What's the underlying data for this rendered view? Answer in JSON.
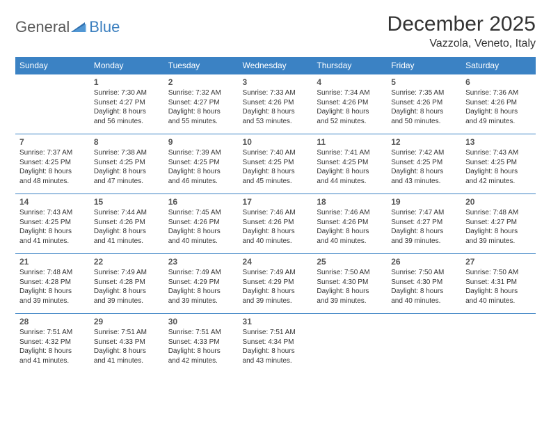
{
  "brand": {
    "part1": "General",
    "part2": "Blue"
  },
  "title": "December 2025",
  "location": "Vazzola, Veneto, Italy",
  "colors": {
    "header_bg": "#3b82c4",
    "header_text": "#ffffff",
    "border": "#3b82c4",
    "page_bg": "#ffffff",
    "text": "#333333",
    "brand_gray": "#5a5a5a",
    "brand_blue": "#3b7fbf"
  },
  "day_headers": [
    "Sunday",
    "Monday",
    "Tuesday",
    "Wednesday",
    "Thursday",
    "Friday",
    "Saturday"
  ],
  "weeks": [
    [
      null,
      {
        "d": "1",
        "sr": "Sunrise: 7:30 AM",
        "ss": "Sunset: 4:27 PM",
        "dl1": "Daylight: 8 hours",
        "dl2": "and 56 minutes."
      },
      {
        "d": "2",
        "sr": "Sunrise: 7:32 AM",
        "ss": "Sunset: 4:27 PM",
        "dl1": "Daylight: 8 hours",
        "dl2": "and 55 minutes."
      },
      {
        "d": "3",
        "sr": "Sunrise: 7:33 AM",
        "ss": "Sunset: 4:26 PM",
        "dl1": "Daylight: 8 hours",
        "dl2": "and 53 minutes."
      },
      {
        "d": "4",
        "sr": "Sunrise: 7:34 AM",
        "ss": "Sunset: 4:26 PM",
        "dl1": "Daylight: 8 hours",
        "dl2": "and 52 minutes."
      },
      {
        "d": "5",
        "sr": "Sunrise: 7:35 AM",
        "ss": "Sunset: 4:26 PM",
        "dl1": "Daylight: 8 hours",
        "dl2": "and 50 minutes."
      },
      {
        "d": "6",
        "sr": "Sunrise: 7:36 AM",
        "ss": "Sunset: 4:26 PM",
        "dl1": "Daylight: 8 hours",
        "dl2": "and 49 minutes."
      }
    ],
    [
      {
        "d": "7",
        "sr": "Sunrise: 7:37 AM",
        "ss": "Sunset: 4:25 PM",
        "dl1": "Daylight: 8 hours",
        "dl2": "and 48 minutes."
      },
      {
        "d": "8",
        "sr": "Sunrise: 7:38 AM",
        "ss": "Sunset: 4:25 PM",
        "dl1": "Daylight: 8 hours",
        "dl2": "and 47 minutes."
      },
      {
        "d": "9",
        "sr": "Sunrise: 7:39 AM",
        "ss": "Sunset: 4:25 PM",
        "dl1": "Daylight: 8 hours",
        "dl2": "and 46 minutes."
      },
      {
        "d": "10",
        "sr": "Sunrise: 7:40 AM",
        "ss": "Sunset: 4:25 PM",
        "dl1": "Daylight: 8 hours",
        "dl2": "and 45 minutes."
      },
      {
        "d": "11",
        "sr": "Sunrise: 7:41 AM",
        "ss": "Sunset: 4:25 PM",
        "dl1": "Daylight: 8 hours",
        "dl2": "and 44 minutes."
      },
      {
        "d": "12",
        "sr": "Sunrise: 7:42 AM",
        "ss": "Sunset: 4:25 PM",
        "dl1": "Daylight: 8 hours",
        "dl2": "and 43 minutes."
      },
      {
        "d": "13",
        "sr": "Sunrise: 7:43 AM",
        "ss": "Sunset: 4:25 PM",
        "dl1": "Daylight: 8 hours",
        "dl2": "and 42 minutes."
      }
    ],
    [
      {
        "d": "14",
        "sr": "Sunrise: 7:43 AM",
        "ss": "Sunset: 4:25 PM",
        "dl1": "Daylight: 8 hours",
        "dl2": "and 41 minutes."
      },
      {
        "d": "15",
        "sr": "Sunrise: 7:44 AM",
        "ss": "Sunset: 4:26 PM",
        "dl1": "Daylight: 8 hours",
        "dl2": "and 41 minutes."
      },
      {
        "d": "16",
        "sr": "Sunrise: 7:45 AM",
        "ss": "Sunset: 4:26 PM",
        "dl1": "Daylight: 8 hours",
        "dl2": "and 40 minutes."
      },
      {
        "d": "17",
        "sr": "Sunrise: 7:46 AM",
        "ss": "Sunset: 4:26 PM",
        "dl1": "Daylight: 8 hours",
        "dl2": "and 40 minutes."
      },
      {
        "d": "18",
        "sr": "Sunrise: 7:46 AM",
        "ss": "Sunset: 4:26 PM",
        "dl1": "Daylight: 8 hours",
        "dl2": "and 40 minutes."
      },
      {
        "d": "19",
        "sr": "Sunrise: 7:47 AM",
        "ss": "Sunset: 4:27 PM",
        "dl1": "Daylight: 8 hours",
        "dl2": "and 39 minutes."
      },
      {
        "d": "20",
        "sr": "Sunrise: 7:48 AM",
        "ss": "Sunset: 4:27 PM",
        "dl1": "Daylight: 8 hours",
        "dl2": "and 39 minutes."
      }
    ],
    [
      {
        "d": "21",
        "sr": "Sunrise: 7:48 AM",
        "ss": "Sunset: 4:28 PM",
        "dl1": "Daylight: 8 hours",
        "dl2": "and 39 minutes."
      },
      {
        "d": "22",
        "sr": "Sunrise: 7:49 AM",
        "ss": "Sunset: 4:28 PM",
        "dl1": "Daylight: 8 hours",
        "dl2": "and 39 minutes."
      },
      {
        "d": "23",
        "sr": "Sunrise: 7:49 AM",
        "ss": "Sunset: 4:29 PM",
        "dl1": "Daylight: 8 hours",
        "dl2": "and 39 minutes."
      },
      {
        "d": "24",
        "sr": "Sunrise: 7:49 AM",
        "ss": "Sunset: 4:29 PM",
        "dl1": "Daylight: 8 hours",
        "dl2": "and 39 minutes."
      },
      {
        "d": "25",
        "sr": "Sunrise: 7:50 AM",
        "ss": "Sunset: 4:30 PM",
        "dl1": "Daylight: 8 hours",
        "dl2": "and 39 minutes."
      },
      {
        "d": "26",
        "sr": "Sunrise: 7:50 AM",
        "ss": "Sunset: 4:30 PM",
        "dl1": "Daylight: 8 hours",
        "dl2": "and 40 minutes."
      },
      {
        "d": "27",
        "sr": "Sunrise: 7:50 AM",
        "ss": "Sunset: 4:31 PM",
        "dl1": "Daylight: 8 hours",
        "dl2": "and 40 minutes."
      }
    ],
    [
      {
        "d": "28",
        "sr": "Sunrise: 7:51 AM",
        "ss": "Sunset: 4:32 PM",
        "dl1": "Daylight: 8 hours",
        "dl2": "and 41 minutes."
      },
      {
        "d": "29",
        "sr": "Sunrise: 7:51 AM",
        "ss": "Sunset: 4:33 PM",
        "dl1": "Daylight: 8 hours",
        "dl2": "and 41 minutes."
      },
      {
        "d": "30",
        "sr": "Sunrise: 7:51 AM",
        "ss": "Sunset: 4:33 PM",
        "dl1": "Daylight: 8 hours",
        "dl2": "and 42 minutes."
      },
      {
        "d": "31",
        "sr": "Sunrise: 7:51 AM",
        "ss": "Sunset: 4:34 PM",
        "dl1": "Daylight: 8 hours",
        "dl2": "and 43 minutes."
      },
      null,
      null,
      null
    ]
  ]
}
